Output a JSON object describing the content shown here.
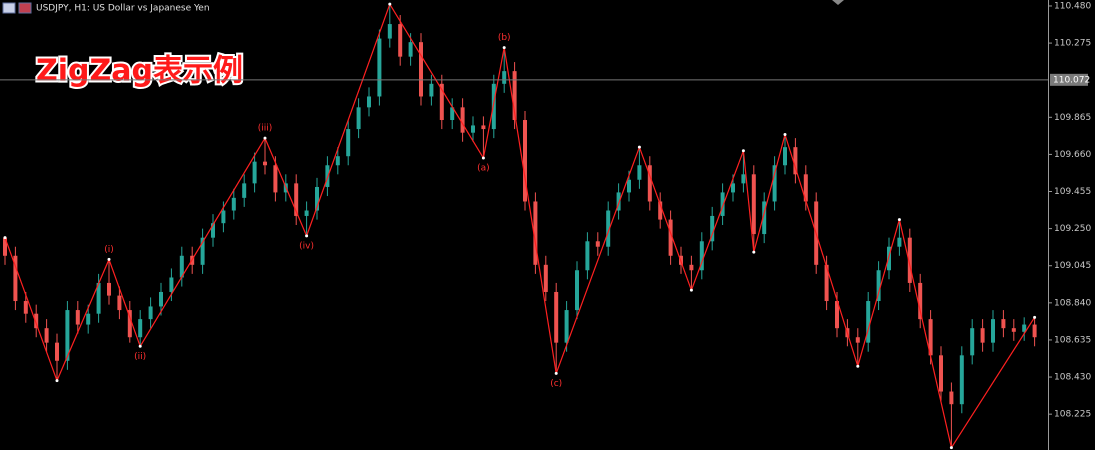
{
  "chart_data": {
    "type": "candlestick",
    "symbol_header": "USDJPY, H1:  US Dollar vs Japanese Yen",
    "title": "ZigZag表示例",
    "up_color": "#26a69a",
    "down_color": "#ef5350",
    "open": [
      109.2,
      109.1,
      108.85,
      108.78,
      108.7,
      108.62,
      108.52,
      108.8,
      108.72,
      108.78,
      108.95,
      108.88,
      108.8,
      108.65,
      108.75,
      108.82,
      108.9,
      108.98,
      109.1,
      109.05,
      109.2,
      109.28,
      109.35,
      109.42,
      109.5,
      109.62,
      109.6,
      109.45,
      109.5,
      109.32,
      109.35,
      109.48,
      109.6,
      109.65,
      109.8,
      109.92,
      109.98,
      110.3,
      110.38,
      110.2,
      110.28,
      109.98,
      110.05,
      109.85,
      109.92,
      109.78,
      109.82,
      109.8,
      110.05,
      110.12,
      109.85,
      109.4,
      109.05,
      108.9,
      108.62,
      108.8,
      109.02,
      109.18,
      109.15,
      109.35,
      109.45,
      109.52,
      109.6,
      109.4,
      109.3,
      109.1,
      109.05,
      109.02,
      109.18,
      109.32,
      109.45,
      109.5,
      109.55,
      109.22,
      109.4,
      109.6,
      109.7,
      109.55,
      109.4,
      109.05,
      108.85,
      108.7,
      108.65,
      108.62,
      108.85,
      109.02,
      109.15,
      109.2,
      108.95,
      108.75,
      108.55,
      108.35,
      108.28,
      108.55,
      108.7,
      108.62,
      108.75,
      108.7,
      108.68,
      108.72
    ],
    "high": [
      109.2,
      109.15,
      108.9,
      108.83,
      108.75,
      108.67,
      108.85,
      108.85,
      108.83,
      109.0,
      109.08,
      108.93,
      108.85,
      108.8,
      108.87,
      108.95,
      109.03,
      109.15,
      109.15,
      109.25,
      109.33,
      109.4,
      109.47,
      109.55,
      109.67,
      109.75,
      109.65,
      109.55,
      109.55,
      109.4,
      109.53,
      109.65,
      109.7,
      109.85,
      109.97,
      110.03,
      110.35,
      110.49,
      110.43,
      110.33,
      110.33,
      110.1,
      110.1,
      109.97,
      109.97,
      109.87,
      109.87,
      110.1,
      110.25,
      110.17,
      109.9,
      109.45,
      109.1,
      108.95,
      108.85,
      109.07,
      109.23,
      109.23,
      109.4,
      109.5,
      109.57,
      109.7,
      109.65,
      109.45,
      109.35,
      109.15,
      109.1,
      109.23,
      109.37,
      109.5,
      109.55,
      109.68,
      109.6,
      109.45,
      109.65,
      109.77,
      109.75,
      109.6,
      109.45,
      109.1,
      108.9,
      108.75,
      108.7,
      108.9,
      109.07,
      109.2,
      109.3,
      109.25,
      109.0,
      108.8,
      108.6,
      108.4,
      108.6,
      108.75,
      108.75,
      108.8,
      108.8,
      108.75,
      108.76,
      108.76
    ],
    "low": [
      109.05,
      108.8,
      108.73,
      108.65,
      108.57,
      108.41,
      108.47,
      108.67,
      108.67,
      108.73,
      108.83,
      108.75,
      108.62,
      108.6,
      108.7,
      108.77,
      108.85,
      108.93,
      109.0,
      109.0,
      109.15,
      109.23,
      109.3,
      109.37,
      109.45,
      109.55,
      109.4,
      109.4,
      109.27,
      109.21,
      109.3,
      109.43,
      109.55,
      109.6,
      109.75,
      109.87,
      109.93,
      110.25,
      110.15,
      110.15,
      109.93,
      109.93,
      109.8,
      109.8,
      109.73,
      109.73,
      109.64,
      109.75,
      110.0,
      109.8,
      109.35,
      109.0,
      108.85,
      108.45,
      108.57,
      108.75,
      108.97,
      109.1,
      109.1,
      109.3,
      109.4,
      109.47,
      109.35,
      109.25,
      109.05,
      109.0,
      108.91,
      108.97,
      109.13,
      109.27,
      109.4,
      109.45,
      109.12,
      109.17,
      109.35,
      109.55,
      109.5,
      109.35,
      109.0,
      108.8,
      108.65,
      108.6,
      108.49,
      108.57,
      108.8,
      108.97,
      109.1,
      108.9,
      108.7,
      108.5,
      108.3,
      108.04,
      108.23,
      108.5,
      108.57,
      108.57,
      108.65,
      108.63,
      108.63,
      108.6
    ],
    "close": [
      109.1,
      108.85,
      108.78,
      108.7,
      108.62,
      108.52,
      108.8,
      108.72,
      108.78,
      108.95,
      108.88,
      108.8,
      108.65,
      108.75,
      108.82,
      108.9,
      108.98,
      109.1,
      109.05,
      109.2,
      109.28,
      109.35,
      109.42,
      109.5,
      109.62,
      109.6,
      109.45,
      109.5,
      109.32,
      109.35,
      109.48,
      109.6,
      109.65,
      109.8,
      109.92,
      109.98,
      110.3,
      110.38,
      110.2,
      110.28,
      109.98,
      110.05,
      109.85,
      109.92,
      109.78,
      109.82,
      109.8,
      110.05,
      110.12,
      109.85,
      109.4,
      109.05,
      108.9,
      108.62,
      108.8,
      109.02,
      109.18,
      109.15,
      109.35,
      109.45,
      109.52,
      109.6,
      109.4,
      109.3,
      109.1,
      109.05,
      109.02,
      109.18,
      109.32,
      109.45,
      109.5,
      109.55,
      109.22,
      109.4,
      109.6,
      109.7,
      109.55,
      109.4,
      109.05,
      108.85,
      108.7,
      108.65,
      108.62,
      108.85,
      109.02,
      109.15,
      109.2,
      108.95,
      108.75,
      108.55,
      108.35,
      108.28,
      108.55,
      108.7,
      108.62,
      108.75,
      108.7,
      108.68,
      108.72,
      108.65
    ],
    "zigzag": {
      "color": "#ff2020",
      "x": [
        0,
        5,
        10,
        13,
        25,
        29,
        37,
        46,
        48,
        53,
        61,
        66,
        71,
        72,
        75,
        82,
        86,
        91,
        99
      ],
      "values": [
        109.2,
        108.41,
        109.08,
        108.6,
        109.75,
        109.21,
        110.49,
        109.64,
        110.25,
        108.45,
        109.7,
        108.91,
        109.68,
        109.12,
        109.77,
        108.49,
        109.3,
        108.04,
        108.76
      ],
      "labels": [
        null,
        null,
        "(i)",
        "(ii)",
        "(iii)",
        "(iv)",
        null,
        "(a)",
        "(b)",
        "(c)",
        null,
        null,
        null,
        null,
        null,
        null,
        null,
        null,
        null
      ]
    },
    "current_price": {
      "value": 110.072,
      "label": "110.072"
    },
    "ylim": [
      108.027,
      110.513
    ],
    "yticks": [
      {
        "value": 110.48,
        "label": "110.480"
      },
      {
        "value": 110.275,
        "label": "110.275"
      },
      {
        "value": 109.865,
        "label": "109.865"
      },
      {
        "value": 109.66,
        "label": "109.660"
      },
      {
        "value": 109.455,
        "label": "109.455"
      },
      {
        "value": 109.25,
        "label": "109.250"
      },
      {
        "value": 109.045,
        "label": "109.045"
      },
      {
        "value": 108.84,
        "label": "108.840"
      },
      {
        "value": 108.635,
        "label": "108.635"
      },
      {
        "value": 108.43,
        "label": "108.430"
      },
      {
        "value": 108.225,
        "label": "108.225"
      }
    ]
  }
}
